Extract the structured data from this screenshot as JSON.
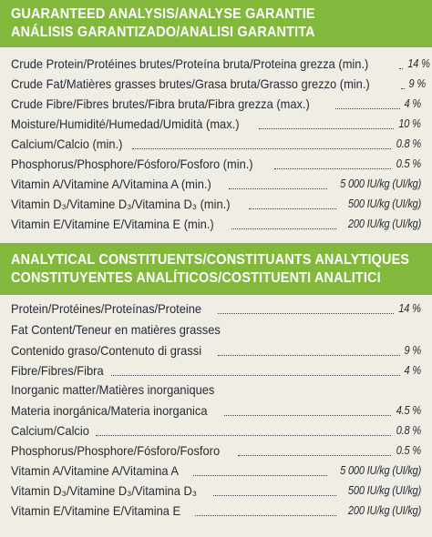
{
  "guaranteed_analysis": {
    "heading_line_1": "GUARANTEED ANALYSIS/ANALYSE GARANTIE",
    "heading_line_2": "ANÁLISIS GARANTIZADO/ANALISI GARANTITA",
    "rows": [
      {
        "label": "Crude Protein/Protéines brutes/Proteína bruta/Proteina grezza (min.)",
        "value": "14 %"
      },
      {
        "label": "Crude Fat/Matières grasses brutes/Grasa bruta/Grasso grezzo (min.)",
        "value": "9 %"
      },
      {
        "label": "Crude Fibre/Fibres brutes/Fibra bruta/Fibra grezza (max.)",
        "value": "4 %"
      },
      {
        "label": "Moisture/Humidité/Humedad/Umidità (max.)",
        "value": "10 %"
      },
      {
        "label": "Calcium/Calcio (min.)",
        "value": "0.8 %"
      },
      {
        "label": "Phosphorus/Phosphore/Fósforo/Fosforo (min.)",
        "value": "0.5 %"
      },
      {
        "label": "Vitamin A/Vitamine A/Vitamina A (min.)",
        "value": "5 000 IU/kg (UI/kg)"
      },
      {
        "label": "Vitamin D₃/Vitamine D₃/Vitamina D₃ (min.)",
        "value": "500 IU/kg (UI/kg)"
      },
      {
        "label": "Vitamin E/Vitamine E/Vitamina E (min.)",
        "value": "200 IU/kg (UI/kg)"
      }
    ]
  },
  "analytical_constituents": {
    "heading_line_1": "ANALYTICAL CONSTITUENTS/CONSTITUANTS ANALYTIQUES",
    "heading_line_2": "CONSTITUYENTES ANALÍTICOS/COSTITUENTI ANALITICI",
    "protein": {
      "label": "Protein/Protéines/Proteínas/Proteine",
      "value": "14 %"
    },
    "fat_line_1": "Fat Content/Teneur en matières grasses",
    "fat": {
      "label": "Contenido graso/Contenuto di grassi",
      "value": "9 %"
    },
    "fibre": {
      "label": "Fibre/Fibres/Fibra",
      "value": "4 %"
    },
    "inorganic_line_1": "Inorganic matter/Matières inorganiques",
    "inorganic": {
      "label": "Materia inorgánica/Materia inorganica",
      "value": "4.5 %"
    },
    "calcium": {
      "label": "Calcium/Calcio",
      "value": "0.8 %"
    },
    "phosphorus": {
      "label": "Phosphorus/Phosphore/Fósforo/Fosforo",
      "value": "0.5 %"
    },
    "vitamin_a": {
      "label": "Vitamin A/Vitamine A/Vitamina A",
      "value": "5 000 IU/kg (UI/kg)"
    },
    "vitamin_d3": {
      "label": "Vitamin D₃/Vitamine D₃/Vitamina D₃",
      "value": "500 IU/kg (UI/kg)"
    },
    "vitamin_e": {
      "label": "Vitamin E/Vitamine E/Vitamina E",
      "value": "200 IU/kg (UI/kg)"
    }
  },
  "colors": {
    "band": "#82b93d",
    "band_text": "#ffffff",
    "background": "#efede4",
    "text": "#262a33"
  }
}
